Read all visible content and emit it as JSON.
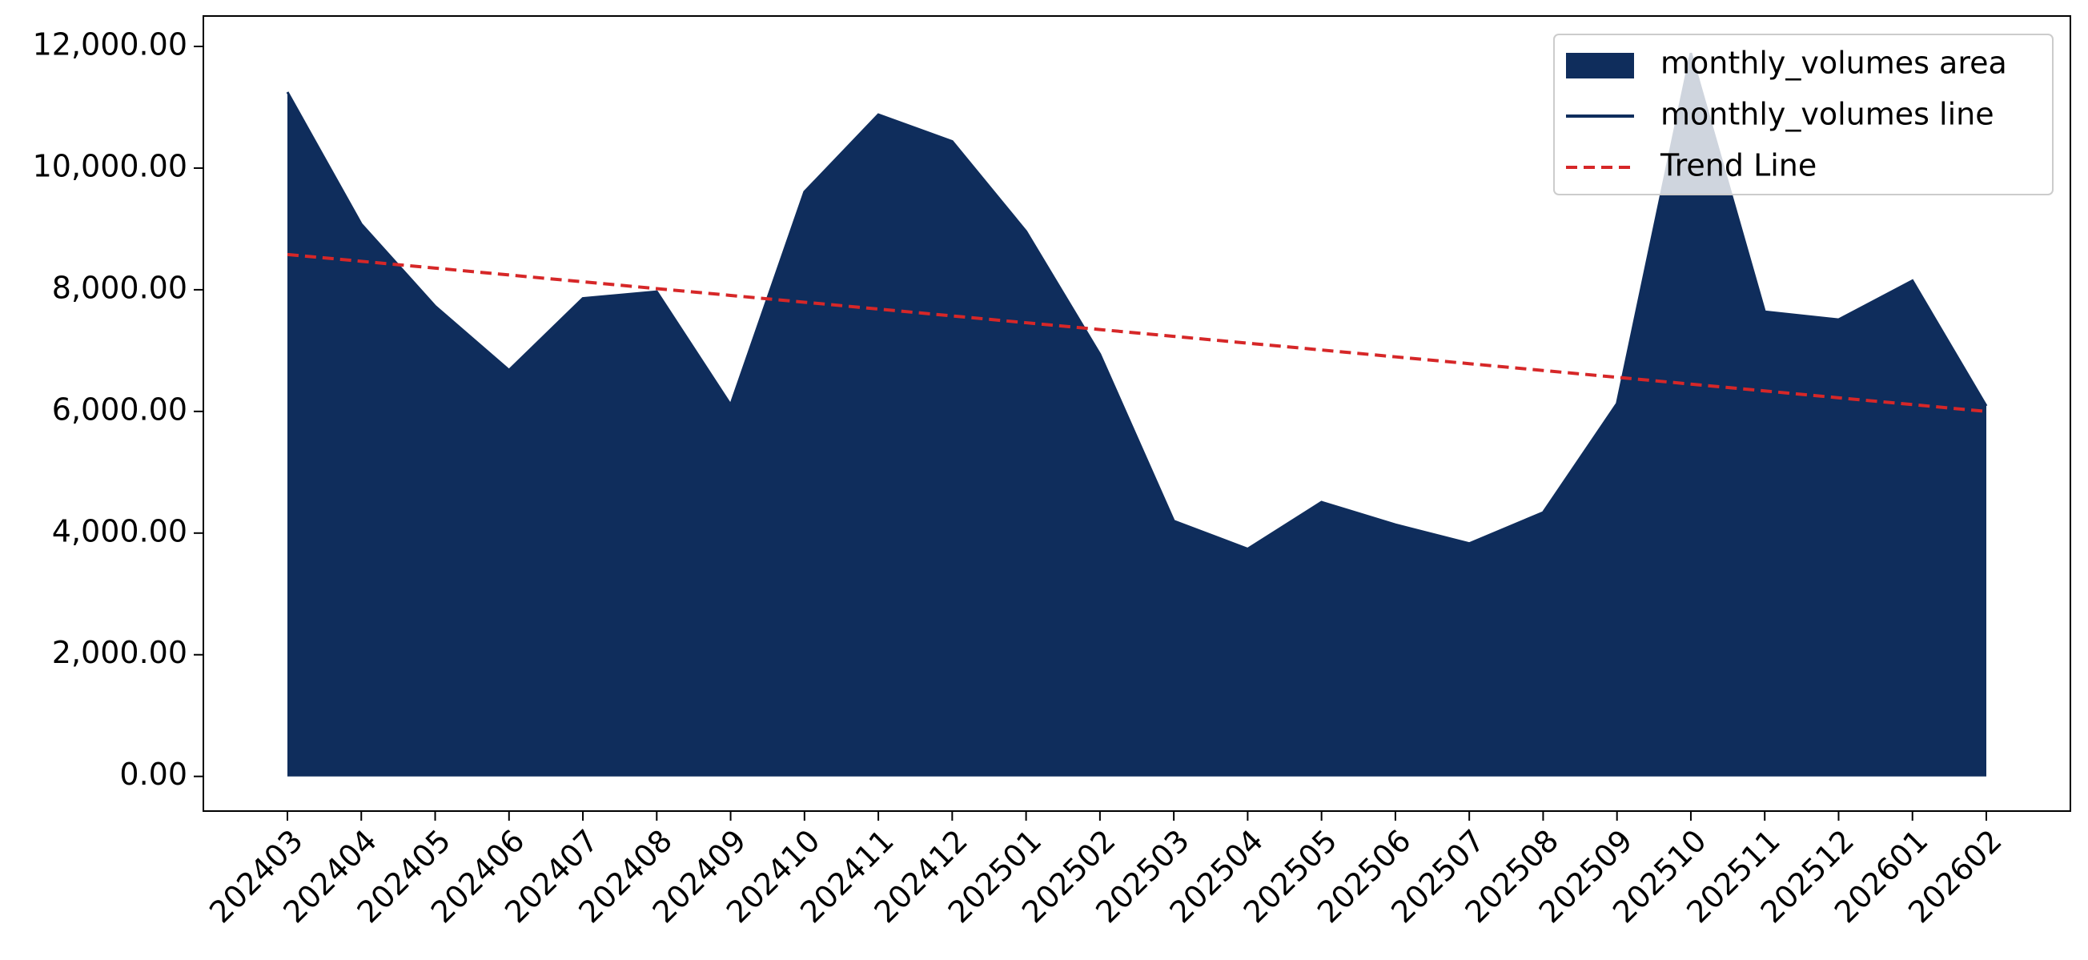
{
  "chart_data": {
    "type": "area",
    "categories": [
      "202403",
      "202404",
      "202405",
      "202406",
      "202407",
      "202408",
      "202409",
      "202410",
      "202411",
      "202412",
      "202501",
      "202502",
      "202503",
      "202504",
      "202505",
      "202506",
      "202507",
      "202508",
      "202509",
      "202510",
      "202511",
      "202512",
      "202601",
      "202602"
    ],
    "series": [
      {
        "name": "monthly_volumes area",
        "kind": "area",
        "color": "#0f2d5c",
        "values": [
          11250,
          9080,
          7730,
          6680,
          7860,
          7970,
          6110,
          9610,
          10880,
          10440,
          8960,
          6940,
          4200,
          3740,
          4510,
          4140,
          3830,
          4340,
          6130,
          11890,
          7640,
          7510,
          8150,
          6090
        ]
      },
      {
        "name": "monthly_volumes line",
        "kind": "line",
        "color": "#0f2d5c",
        "values": [
          11250,
          9080,
          7730,
          6680,
          7860,
          7970,
          6110,
          9610,
          10880,
          10440,
          8960,
          6940,
          4200,
          3740,
          4510,
          4140,
          3830,
          4340,
          6130,
          11890,
          7640,
          7510,
          8150,
          6090
        ]
      },
      {
        "name": "Trend Line",
        "kind": "dashed",
        "color": "#d62728",
        "values": [
          8580,
          8468,
          8356,
          8243,
          8131,
          8019,
          7907,
          7795,
          7683,
          7570,
          7458,
          7346,
          7234,
          7122,
          7010,
          6897,
          6785,
          6673,
          6561,
          6449,
          6337,
          6224,
          6112,
          6000
        ]
      }
    ],
    "ylim": [
      -570,
      12500
    ],
    "yticks": [
      {
        "value": 0,
        "label": "0.00"
      },
      {
        "value": 2000,
        "label": "2,000.00"
      },
      {
        "value": 4000,
        "label": "4,000.00"
      },
      {
        "value": 6000,
        "label": "6,000.00"
      },
      {
        "value": 8000,
        "label": "8,000.00"
      },
      {
        "value": 10000,
        "label": "10,000.00"
      },
      {
        "value": 12000,
        "label": "12,000.00"
      }
    ],
    "grid": false,
    "legend": "upper right"
  }
}
